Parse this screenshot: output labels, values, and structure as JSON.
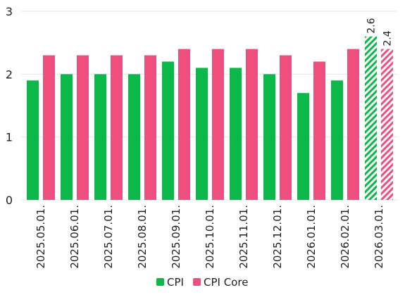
{
  "chart_data": {
    "type": "bar",
    "categories": [
      "2025.05.01.",
      "2025.06.01.",
      "2025.07.01.",
      "2025.08.01.",
      "2025.09.01.",
      "2025.10.01.",
      "2025.11.01.",
      "2025.12.01.",
      "2026.01.01.",
      "2026.02.01.",
      "2026.03.01."
    ],
    "series": [
      {
        "name": "CPI",
        "values": [
          1.9,
          2.0,
          2.0,
          2.0,
          2.2,
          2.1,
          2.1,
          2.0,
          1.7,
          1.9,
          2.6
        ],
        "color": "#0db84a"
      },
      {
        "name": "CPI Core",
        "values": [
          2.3,
          2.3,
          2.3,
          2.3,
          2.4,
          2.4,
          2.4,
          2.3,
          2.2,
          2.4,
          2.4
        ],
        "color": "#ef4f7f"
      }
    ],
    "forecast_index": 10,
    "data_labels": [
      "2.6",
      "2.4"
    ],
    "ylim": [
      0,
      3
    ],
    "yticks": [
      "0",
      "1",
      "2",
      "3"
    ],
    "grid": true,
    "legend": "bottom-center"
  }
}
